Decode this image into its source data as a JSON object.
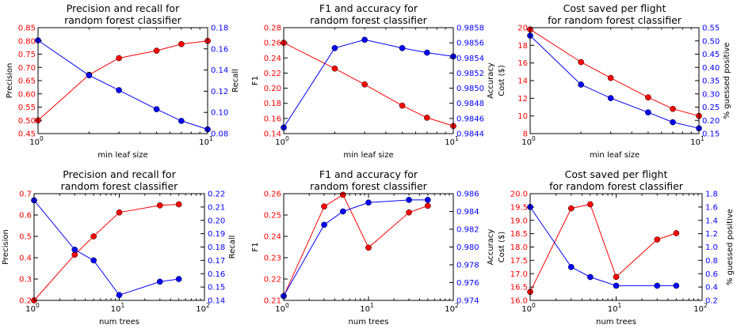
{
  "colors": {
    "left": "#ff0000",
    "right": "#0000ff",
    "axes": "#000000"
  },
  "chart_data": [
    {
      "type": "line",
      "title": [
        "Precision and recall for",
        "random forest classifier"
      ],
      "xlabel": "min leaf size",
      "xscale": "log",
      "xlim": [
        1,
        10
      ],
      "xticks": [
        1,
        10
      ],
      "xtick_labels": [
        {
          "base": "10",
          "exp": "0"
        },
        {
          "base": "10",
          "exp": "1"
        }
      ],
      "left": {
        "label": "Precision",
        "ylim": [
          0.45,
          0.85
        ],
        "ticks": [
          "0.45",
          "0.50",
          "0.55",
          "0.60",
          "0.65",
          "0.70",
          "0.75",
          "0.80",
          "0.85"
        ],
        "x": [
          1,
          2,
          3,
          5,
          7,
          10
        ],
        "values": [
          0.5,
          0.672,
          0.735,
          0.763,
          0.788,
          0.8
        ]
      },
      "right": {
        "label": "Recall",
        "ylim": [
          0.08,
          0.18
        ],
        "ticks": [
          "0.08",
          "0.10",
          "0.12",
          "0.14",
          "0.16",
          "0.18"
        ],
        "x": [
          1,
          2,
          3,
          5,
          7,
          10
        ],
        "values": [
          0.168,
          0.135,
          0.121,
          0.103,
          0.092,
          0.084
        ]
      }
    },
    {
      "type": "line",
      "title": [
        "F1 and accuracy for",
        "random forest classifier"
      ],
      "xlabel": "min leaf size",
      "xscale": "log",
      "xlim": [
        1,
        10
      ],
      "xticks": [
        1,
        10
      ],
      "xtick_labels": [
        {
          "base": "10",
          "exp": "0"
        },
        {
          "base": "10",
          "exp": "1"
        }
      ],
      "left": {
        "label": "F1",
        "ylim": [
          0.14,
          0.28
        ],
        "ticks": [
          "0.14",
          "0.16",
          "0.18",
          "0.20",
          "0.22",
          "0.24",
          "0.26",
          "0.28"
        ],
        "x": [
          1,
          2,
          3,
          5,
          7,
          10
        ],
        "values": [
          0.26,
          0.226,
          0.205,
          0.177,
          0.161,
          0.15
        ]
      },
      "right": {
        "label": "Accuracy",
        "ylim": [
          0.9844,
          0.9858
        ],
        "ticks": [
          "0.9844",
          "0.9846",
          "0.9848",
          "0.9850",
          "0.9852",
          "0.9854",
          "0.9856",
          "0.9858"
        ],
        "x": [
          1,
          2,
          3,
          5,
          7,
          10
        ],
        "values": [
          0.98448,
          0.98553,
          0.98564,
          0.98553,
          0.98547,
          0.98542
        ]
      }
    },
    {
      "type": "line",
      "title": [
        "Cost saved per flight",
        "for random forest classifier"
      ],
      "xlabel": "min leaf size",
      "xscale": "log",
      "xlim": [
        1,
        10
      ],
      "xticks": [
        1,
        10
      ],
      "xtick_labels": [
        {
          "base": "10",
          "exp": "0"
        },
        {
          "base": "10",
          "exp": "1"
        }
      ],
      "left": {
        "label": "Cost ($)",
        "ylim": [
          8,
          20
        ],
        "ticks": [
          "8",
          "10",
          "12",
          "14",
          "16",
          "18",
          "20"
        ],
        "x": [
          1,
          2,
          3,
          5,
          7,
          10
        ],
        "values": [
          19.8,
          16.1,
          14.3,
          12.1,
          10.8,
          10.0
        ]
      },
      "right": {
        "label": "% guessed positive",
        "ylim": [
          0.15,
          0.55
        ],
        "ticks": [
          "0.15",
          "0.20",
          "0.25",
          "0.30",
          "0.35",
          "0.40",
          "0.45",
          "0.50",
          "0.55"
        ],
        "x": [
          1,
          2,
          3,
          5,
          7,
          10
        ],
        "values": [
          0.52,
          0.335,
          0.284,
          0.23,
          0.193,
          0.17
        ]
      }
    },
    {
      "type": "line",
      "title": [
        "Precision and recall for",
        "random forest classifier"
      ],
      "xlabel": "num trees",
      "xscale": "log",
      "xlim": [
        1,
        100
      ],
      "xticks": [
        1,
        10,
        100
      ],
      "xtick_labels": [
        {
          "base": "10",
          "exp": "0"
        },
        {
          "base": "10",
          "exp": "1"
        },
        {
          "base": "10",
          "exp": "2"
        }
      ],
      "left": {
        "label": "Precision",
        "ylim": [
          0.2,
          0.7
        ],
        "ticks": [
          "0.2",
          "0.3",
          "0.4",
          "0.5",
          "0.6",
          "0.7"
        ],
        "x": [
          1,
          3,
          5,
          10,
          30,
          50
        ],
        "values": [
          0.2,
          0.414,
          0.5,
          0.612,
          0.645,
          0.65
        ]
      },
      "right": {
        "label": "Recall",
        "ylim": [
          0.14,
          0.22
        ],
        "ticks": [
          "0.14",
          "0.15",
          "0.16",
          "0.17",
          "0.18",
          "0.19",
          "0.20",
          "0.21",
          "0.22"
        ],
        "x": [
          1,
          3,
          5,
          10,
          30,
          50
        ],
        "values": [
          0.215,
          0.178,
          0.17,
          0.144,
          0.154,
          0.156
        ]
      }
    },
    {
      "type": "line",
      "title": [
        "F1 and accuracy for",
        "random forest classifier"
      ],
      "xlabel": "num trees",
      "xscale": "log",
      "xlim": [
        1,
        100
      ],
      "xticks": [
        1,
        10,
        100
      ],
      "xtick_labels": [
        {
          "base": "10",
          "exp": "0"
        },
        {
          "base": "10",
          "exp": "1"
        },
        {
          "base": "10",
          "exp": "2"
        }
      ],
      "left": {
        "label": "F1",
        "ylim": [
          0.21,
          0.26
        ],
        "ticks": [
          "0.21",
          "0.22",
          "0.23",
          "0.24",
          "0.25",
          "0.26"
        ],
        "x": [
          1,
          3,
          5,
          10,
          30,
          50
        ],
        "values": [
          0.212,
          0.254,
          0.2595,
          0.2347,
          0.2512,
          0.2543
        ]
      },
      "right": {
        "label": "Accuracy",
        "ylim": [
          0.974,
          0.986
        ],
        "ticks": [
          "0.974",
          "0.976",
          "0.978",
          "0.980",
          "0.982",
          "0.984",
          "0.986"
        ],
        "x": [
          1,
          3,
          5,
          10,
          30,
          50
        ],
        "values": [
          0.9745,
          0.9825,
          0.984,
          0.985,
          0.9853,
          0.9853
        ]
      }
    },
    {
      "type": "line",
      "title": [
        "Cost saved per flight",
        "for random forest classifier"
      ],
      "xlabel": "num trees",
      "xscale": "log",
      "xlim": [
        1,
        100
      ],
      "xticks": [
        1,
        10,
        100
      ],
      "xtick_labels": [
        {
          "base": "10",
          "exp": "0"
        },
        {
          "base": "10",
          "exp": "1"
        },
        {
          "base": "10",
          "exp": "2"
        }
      ],
      "left": {
        "label": "Cost ($)",
        "ylim": [
          16.0,
          20.0
        ],
        "ticks": [
          "16.0",
          "16.5",
          "17.0",
          "17.5",
          "18.0",
          "18.5",
          "19.0",
          "19.5",
          "20.0"
        ],
        "x": [
          1,
          3,
          5,
          10,
          30,
          50
        ],
        "values": [
          16.32,
          19.45,
          19.6,
          16.88,
          18.28,
          18.52
        ]
      },
      "right": {
        "label": "% guessed positive",
        "ylim": [
          0.2,
          1.8
        ],
        "ticks": [
          "0.2",
          "0.4",
          "0.6",
          "0.8",
          "1.0",
          "1.2",
          "1.4",
          "1.6",
          "1.8"
        ],
        "x": [
          1,
          3,
          5,
          10,
          30,
          50
        ],
        "values": [
          1.6,
          0.7,
          0.55,
          0.42,
          0.42,
          0.42
        ]
      }
    }
  ]
}
